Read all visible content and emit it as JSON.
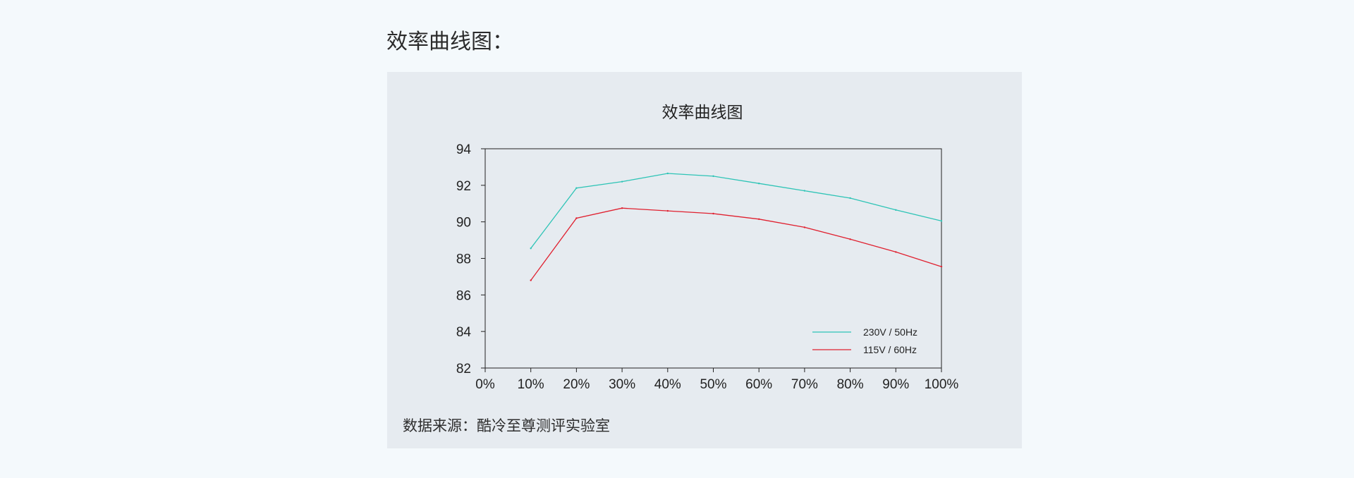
{
  "page": {
    "heading": "效率曲线图："
  },
  "chart_data": {
    "type": "line",
    "title": "效率曲线图",
    "xlabel": "",
    "ylabel": "",
    "x": [
      "0%",
      "10%",
      "20%",
      "30%",
      "40%",
      "50%",
      "60%",
      "70%",
      "80%",
      "90%",
      "100%"
    ],
    "y_ticks": [
      "82",
      "84",
      "86",
      "88",
      "90",
      "92",
      "94"
    ],
    "ylim": [
      82,
      94
    ],
    "grid": false,
    "legend_position": "bottom-right",
    "series": [
      {
        "name": "230V / 50Hz",
        "color": "#2ec4b6",
        "points": [
          [
            10,
            88.55
          ],
          [
            20,
            91.85
          ],
          [
            30,
            92.2
          ],
          [
            40,
            92.65
          ],
          [
            50,
            92.5
          ],
          [
            60,
            92.1
          ],
          [
            70,
            91.7
          ],
          [
            80,
            91.3
          ],
          [
            90,
            90.65
          ],
          [
            100,
            90.05
          ]
        ]
      },
      {
        "name": "115V / 60Hz",
        "color": "#e0202f",
        "points": [
          [
            10,
            86.8
          ],
          [
            20,
            90.2
          ],
          [
            30,
            90.75
          ],
          [
            40,
            90.6
          ],
          [
            50,
            90.45
          ],
          [
            60,
            90.15
          ],
          [
            70,
            89.7
          ],
          [
            80,
            89.05
          ],
          [
            90,
            88.35
          ],
          [
            100,
            87.55
          ]
        ]
      }
    ]
  },
  "footer": {
    "source": "数据来源：酷冷至尊测评实验室"
  }
}
